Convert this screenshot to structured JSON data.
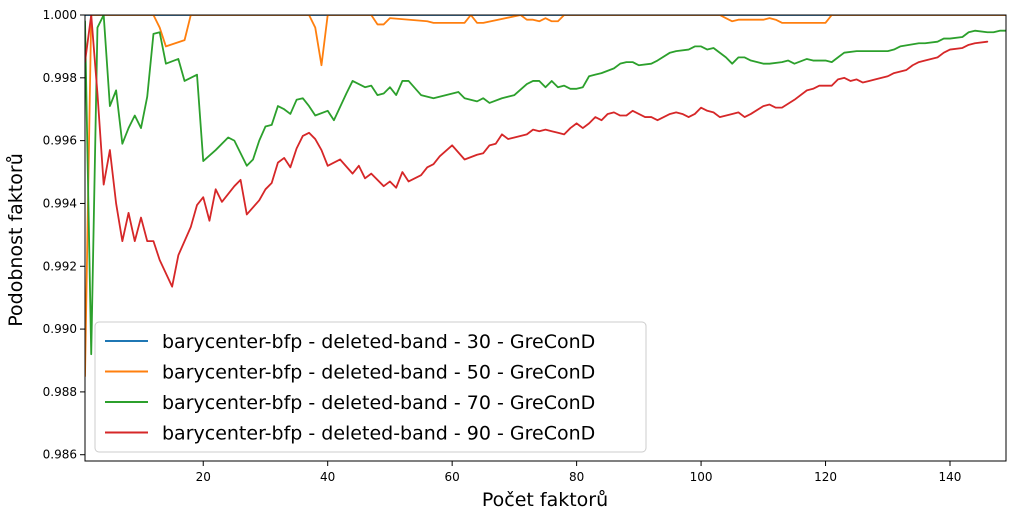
{
  "chart_data": {
    "type": "line",
    "xlabel": "Počet faktorů",
    "ylabel": "Podobnost faktorů",
    "xlim": [
      1,
      149
    ],
    "ylim": [
      0.9858,
      1.0
    ],
    "xticks": [
      20,
      40,
      60,
      80,
      100,
      120,
      140
    ],
    "yticks": [
      0.986,
      0.988,
      0.99,
      0.992,
      0.994,
      0.996,
      0.998,
      1.0
    ],
    "ytick_labels": [
      "0.986",
      "0.988",
      "0.990",
      "0.992",
      "0.994",
      "0.996",
      "0.998",
      "1.000"
    ],
    "grid": false,
    "legend_position": "lower-left",
    "series": [
      {
        "name": "barycenter-bfp - deleted-band - 30 - GreConD",
        "color": "#1f77b4",
        "x": [
          1,
          2,
          149
        ],
        "y": [
          1.0,
          1.0,
          1.0
        ]
      },
      {
        "name": "barycenter-bfp - deleted-band - 50 - GreConD",
        "color": "#ff7f0e",
        "x": [
          1,
          2,
          12,
          13,
          14,
          17,
          18,
          37,
          38,
          39,
          40,
          47,
          48,
          49,
          50,
          56,
          57,
          62,
          63,
          64,
          65,
          71,
          72,
          73,
          74,
          75,
          76,
          77,
          78,
          103,
          104,
          105,
          106,
          110,
          111,
          112,
          113,
          120,
          121,
          149
        ],
        "y": [
          0.9885,
          1.0,
          1.0,
          0.9996,
          0.999,
          0.9992,
          1.0,
          1.0,
          0.9996,
          0.9984,
          1.0,
          1.0,
          0.9997,
          0.9997,
          0.9999,
          0.9998,
          0.99975,
          0.99975,
          1.0,
          0.99975,
          0.99975,
          1.0,
          0.99985,
          0.99985,
          0.9998,
          0.9999,
          0.9998,
          0.9998,
          1.0,
          1.0,
          0.9999,
          0.9998,
          0.99985,
          0.99985,
          0.9999,
          0.99985,
          0.99975,
          0.99975,
          1.0,
          1.0
        ]
      },
      {
        "name": "barycenter-bfp - deleted-band - 70 - GreConD",
        "color": "#2ca02c",
        "x": [
          1,
          2,
          3,
          4,
          5,
          6,
          7,
          8,
          9,
          10,
          11,
          12,
          13,
          14,
          16,
          17,
          19,
          20,
          22,
          24,
          25,
          27,
          28,
          29,
          30,
          31,
          32,
          33,
          34,
          35,
          36,
          37,
          38,
          40,
          41,
          43,
          44,
          46,
          47,
          48,
          49,
          50,
          51,
          52,
          53,
          55,
          57,
          59,
          61,
          62,
          64,
          65,
          66,
          68,
          70,
          72,
          73,
          74,
          75,
          76,
          77,
          78,
          79,
          80,
          81,
          82,
          83,
          84,
          86,
          87,
          88,
          89,
          90,
          92,
          93,
          95,
          96,
          98,
          99,
          100,
          101,
          102,
          104,
          105,
          106,
          107,
          108,
          110,
          111,
          113,
          114,
          115,
          117,
          118,
          120,
          121,
          122,
          123,
          125,
          128,
          130,
          131,
          132,
          135,
          136,
          138,
          139,
          140,
          142,
          143,
          144,
          146,
          147,
          148,
          149
        ],
        "y": [
          0.9998,
          0.9892,
          0.9996,
          1.0,
          0.9971,
          0.9976,
          0.9959,
          0.9964,
          0.9968,
          0.9964,
          0.9974,
          0.9994,
          0.99945,
          0.99845,
          0.9986,
          0.9979,
          0.9981,
          0.99535,
          0.9957,
          0.9961,
          0.996,
          0.9952,
          0.9954,
          0.996,
          0.99645,
          0.9965,
          0.9971,
          0.997,
          0.99685,
          0.9973,
          0.99735,
          0.9971,
          0.9968,
          0.99695,
          0.99665,
          0.9975,
          0.9979,
          0.9977,
          0.99775,
          0.99745,
          0.9975,
          0.9977,
          0.99745,
          0.9979,
          0.9979,
          0.99745,
          0.99735,
          0.99745,
          0.99755,
          0.99735,
          0.99725,
          0.99735,
          0.9972,
          0.99735,
          0.99745,
          0.9978,
          0.9979,
          0.9979,
          0.9977,
          0.9979,
          0.9977,
          0.99775,
          0.99765,
          0.99765,
          0.9977,
          0.99805,
          0.9981,
          0.99815,
          0.9983,
          0.99845,
          0.9985,
          0.9985,
          0.9984,
          0.99845,
          0.99855,
          0.9988,
          0.99885,
          0.9989,
          0.999,
          0.999,
          0.9989,
          0.99895,
          0.99865,
          0.99845,
          0.99865,
          0.99865,
          0.99855,
          0.99845,
          0.99845,
          0.9985,
          0.99855,
          0.99845,
          0.9986,
          0.99855,
          0.99855,
          0.9985,
          0.99865,
          0.9988,
          0.99885,
          0.99885,
          0.99885,
          0.9989,
          0.999,
          0.9991,
          0.9991,
          0.99915,
          0.99925,
          0.99925,
          0.9993,
          0.99945,
          0.9995,
          0.99945,
          0.99945,
          0.9995,
          0.9995
        ]
      },
      {
        "name": "barycenter-bfp - deleted-band - 90 - GreConD",
        "color": "#d62728",
        "x": [
          1,
          2,
          3,
          4,
          5,
          6,
          7,
          8,
          9,
          10,
          11,
          12,
          13,
          15,
          16,
          18,
          19,
          20,
          21,
          22,
          23,
          25,
          26,
          27,
          29,
          30,
          31,
          32,
          33,
          34,
          35,
          36,
          37,
          38,
          39,
          40,
          42,
          44,
          45,
          46,
          47,
          49,
          50,
          51,
          52,
          53,
          55,
          56,
          57,
          58,
          60,
          62,
          64,
          65,
          66,
          67,
          68,
          69,
          70,
          72,
          73,
          74,
          75,
          76,
          77,
          78,
          79,
          80,
          81,
          82,
          83,
          84,
          85,
          86,
          87,
          88,
          89,
          90,
          91,
          92,
          93,
          94,
          95,
          96,
          97,
          98,
          99,
          100,
          101,
          102,
          103,
          105,
          106,
          107,
          108,
          110,
          111,
          112,
          113,
          115,
          117,
          118,
          119,
          121,
          122,
          123,
          124,
          125,
          126,
          127,
          128,
          130,
          131,
          133,
          134,
          135,
          136,
          138,
          139,
          140,
          142,
          143,
          144,
          146
        ],
        "y": [
          0.9985,
          1.0,
          0.9975,
          0.9946,
          0.9957,
          0.994,
          0.9928,
          0.9937,
          0.9928,
          0.99355,
          0.9928,
          0.9928,
          0.9922,
          0.99135,
          0.99235,
          0.99325,
          0.99395,
          0.9942,
          0.99345,
          0.99445,
          0.99405,
          0.99455,
          0.99475,
          0.99365,
          0.9941,
          0.99445,
          0.99465,
          0.9953,
          0.99545,
          0.99515,
          0.99575,
          0.99615,
          0.99625,
          0.99605,
          0.9957,
          0.9952,
          0.9954,
          0.99495,
          0.9952,
          0.9948,
          0.99495,
          0.99455,
          0.9947,
          0.9945,
          0.995,
          0.9947,
          0.9949,
          0.99515,
          0.99525,
          0.9955,
          0.99585,
          0.9954,
          0.99555,
          0.9956,
          0.99585,
          0.9959,
          0.9962,
          0.99605,
          0.9961,
          0.9962,
          0.99635,
          0.9963,
          0.99635,
          0.9963,
          0.99625,
          0.9962,
          0.9964,
          0.99655,
          0.9964,
          0.99655,
          0.99675,
          0.99665,
          0.99685,
          0.9969,
          0.9968,
          0.9968,
          0.99695,
          0.99685,
          0.99675,
          0.99675,
          0.99665,
          0.99675,
          0.99685,
          0.9969,
          0.99685,
          0.99675,
          0.99685,
          0.99705,
          0.99695,
          0.9969,
          0.99675,
          0.99685,
          0.9969,
          0.99675,
          0.99685,
          0.9971,
          0.99715,
          0.99705,
          0.99705,
          0.9973,
          0.9976,
          0.99765,
          0.99775,
          0.99775,
          0.99795,
          0.998,
          0.9979,
          0.99795,
          0.99785,
          0.9979,
          0.99795,
          0.99805,
          0.99815,
          0.99825,
          0.9984,
          0.9985,
          0.99855,
          0.99865,
          0.9988,
          0.9989,
          0.99895,
          0.99905,
          0.9991,
          0.99915
        ]
      }
    ]
  }
}
